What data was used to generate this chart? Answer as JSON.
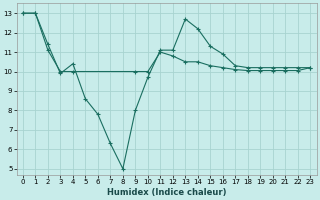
{
  "title": "",
  "xlabel": "Humidex (Indice chaleur)",
  "bg_color": "#c8ecea",
  "grid_color": "#a8d4d0",
  "line_color": "#1a6e60",
  "xlim": [
    -0.5,
    23.5
  ],
  "ylim": [
    4.7,
    13.5
  ],
  "yticks": [
    5,
    6,
    7,
    8,
    9,
    10,
    11,
    12,
    13
  ],
  "xticks": [
    0,
    1,
    2,
    3,
    4,
    5,
    6,
    7,
    8,
    9,
    10,
    11,
    12,
    13,
    14,
    15,
    16,
    17,
    18,
    19,
    20,
    21,
    22,
    23
  ],
  "series1_x": [
    0,
    1,
    2,
    3,
    4,
    5,
    6,
    7,
    8,
    9,
    10,
    11,
    12,
    13,
    14,
    15,
    16,
    17,
    18,
    19,
    20,
    21,
    22,
    23
  ],
  "series1_y": [
    13,
    13,
    11.4,
    9.9,
    10.4,
    8.6,
    7.8,
    6.3,
    5.0,
    8.0,
    9.7,
    11.1,
    11.1,
    12.7,
    12.2,
    11.3,
    10.9,
    10.3,
    10.2,
    10.2,
    10.2,
    10.2,
    10.2,
    10.2
  ],
  "series2_x": [
    0,
    1,
    2,
    3,
    4,
    9,
    10,
    11,
    12,
    13,
    14,
    15,
    16,
    17,
    18,
    19,
    20,
    21,
    22,
    23
  ],
  "series2_y": [
    13,
    13,
    11.1,
    10.0,
    10.0,
    10.0,
    10.0,
    11.0,
    10.8,
    10.5,
    10.5,
    10.3,
    10.2,
    10.1,
    10.05,
    10.05,
    10.05,
    10.05,
    10.05,
    10.2
  ],
  "xlabel_fontsize": 6.0,
  "tick_fontsize": 5.0,
  "linewidth": 0.8,
  "markersize": 3.0
}
